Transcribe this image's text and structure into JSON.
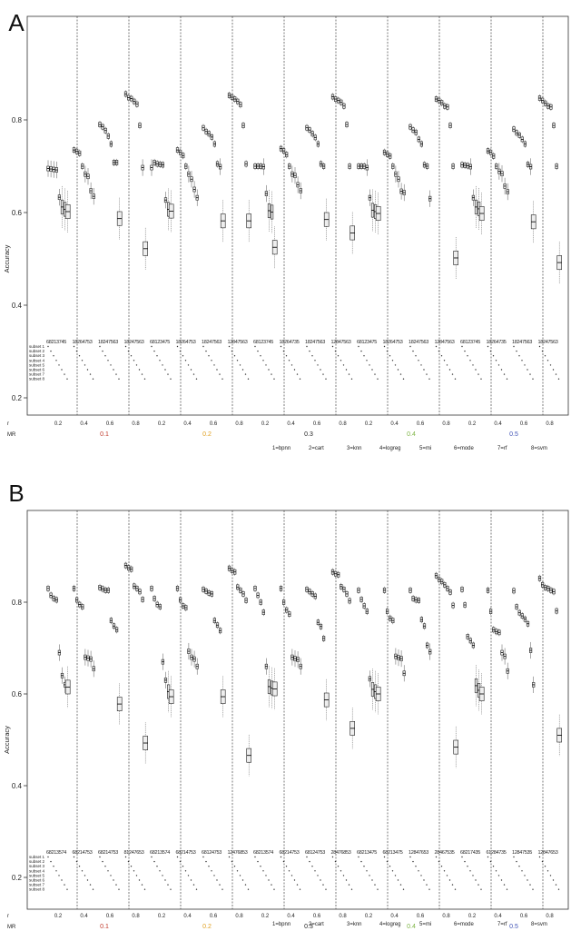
{
  "chart_data": [
    {
      "panel_label": "A",
      "type": "boxplot",
      "ylabel": "Accuracy",
      "ylim": [
        0.18,
        0.92
      ],
      "yticks": [
        0.2,
        0.4,
        0.6,
        0.8
      ],
      "grid": false,
      "legend": "bottom",
      "r_label": "r",
      "mr_label": "MR",
      "r_values": [
        "0.2",
        "0.4",
        "0.6",
        "0.8",
        "0.2",
        "0.4",
        "0.6",
        "0.8",
        "0.2",
        "0.4",
        "0.6",
        "0.8",
        "0.2",
        "0.4",
        "0.6",
        "0.8",
        "0.2",
        "0.4",
        "0.6",
        "0.8"
      ],
      "mr_values": [
        "0.1",
        "0.2",
        "0.3",
        "0.4",
        "0.5"
      ],
      "mr_colors": [
        "#c0392b",
        "#e0a020",
        "#222222",
        "#7cb342",
        "#3f51b5"
      ],
      "subset_labels": [
        "subset 1",
        "subset 2",
        "subset 3",
        "subset 4",
        "subset 5",
        "subset 6",
        "subset 7",
        "subset 8"
      ],
      "method_legend": [
        "1=bpnn",
        "2=cart",
        "3=knn",
        "4=logreg",
        "5=mi",
        "6=mode",
        "7=rf",
        "8=svm"
      ],
      "group_orders": [
        "68213745",
        "18264753",
        "18247563",
        "18247563",
        "68123475",
        "18264753",
        "18247563",
        "12847563",
        "68123745",
        "18264735",
        "18247563",
        "12847563",
        "68123475",
        "18264753",
        "18247563",
        "12847563",
        "68123745",
        "18264735",
        "18247563",
        "18247563"
      ],
      "medians": [
        [
          0.695,
          0.694,
          0.693,
          0.692,
          0.633,
          0.612,
          0.607,
          0.602
        ],
        [
          0.735,
          0.732,
          0.728,
          0.7,
          0.683,
          0.678,
          0.647,
          0.635
        ],
        [
          0.79,
          0.785,
          0.777,
          0.765,
          0.748,
          0.708,
          0.708,
          0.587
        ],
        [
          0.856,
          0.848,
          0.846,
          0.84,
          0.834,
          0.788,
          0.697,
          0.522
        ],
        [
          0.697,
          0.708,
          0.705,
          0.704,
          0.703,
          0.627,
          0.607,
          0.603
        ],
        [
          0.735,
          0.73,
          0.723,
          0.7,
          0.683,
          0.672,
          0.65,
          0.632
        ],
        [
          0.783,
          0.775,
          0.77,
          0.763,
          0.748,
          0.705,
          0.699,
          0.582
        ],
        [
          0.853,
          0.849,
          0.845,
          0.84,
          0.833,
          0.788,
          0.705,
          0.582
        ],
        [
          0.7,
          0.7,
          0.7,
          0.699,
          0.641,
          0.604,
          0.601,
          0.525
        ],
        [
          0.738,
          0.733,
          0.725,
          0.7,
          0.683,
          0.68,
          0.66,
          0.647
        ],
        [
          0.783,
          0.778,
          0.77,
          0.762,
          0.748,
          0.705,
          0.7,
          0.585
        ],
        [
          0.85,
          0.845,
          0.842,
          0.838,
          0.83,
          0.79,
          0.7,
          0.556
        ],
        [
          0.7,
          0.7,
          0.7,
          0.697,
          0.632,
          0.605,
          0.602,
          0.598
        ],
        [
          0.73,
          0.726,
          0.722,
          0.7,
          0.683,
          0.672,
          0.646,
          0.643
        ],
        [
          0.785,
          0.778,
          0.773,
          0.758,
          0.748,
          0.703,
          0.7,
          0.63
        ],
        [
          0.845,
          0.842,
          0.837,
          0.83,
          0.828,
          0.788,
          0.7,
          0.502
        ],
        [
          0.703,
          0.702,
          0.701,
          0.699,
          0.632,
          0.612,
          0.608,
          0.598
        ],
        [
          0.733,
          0.73,
          0.722,
          0.7,
          0.689,
          0.684,
          0.657,
          0.645
        ],
        [
          0.78,
          0.772,
          0.767,
          0.758,
          0.748,
          0.704,
          0.699,
          0.58
        ],
        [
          0.847,
          0.842,
          0.836,
          0.83,
          0.828,
          0.788,
          0.7,
          0.492
        ]
      ]
    },
    {
      "panel_label": "B",
      "type": "boxplot",
      "ylabel": "Accuracy",
      "ylim": [
        0.18,
        0.92
      ],
      "yticks": [
        0.2,
        0.4,
        0.6,
        0.8
      ],
      "grid": false,
      "legend": "bottom",
      "r_label": "r",
      "mr_label": "MR",
      "r_values": [
        "0.2",
        "0.4",
        "0.6",
        "0.8",
        "0.2",
        "0.4",
        "0.6",
        "0.8",
        "0.2",
        "0.4",
        "0.6",
        "0.8",
        "0.2",
        "0.4",
        "0.6",
        "0.8",
        "0.2",
        "0.4",
        "0.6",
        "0.8"
      ],
      "mr_values": [
        "0.1",
        "0.2",
        "0.3",
        "0.4",
        "0.5"
      ],
      "mr_colors": [
        "#c0392b",
        "#e0a020",
        "#222222",
        "#7cb342",
        "#3f51b5"
      ],
      "subset_labels": [
        "subset 1",
        "subset 2",
        "subset 3",
        "subset 4",
        "subset 5",
        "subset 6",
        "subset 7",
        "subset 8"
      ],
      "method_legend": [
        "1=bpnn",
        "2=cart",
        "3=knn",
        "4=logreg",
        "5=mi",
        "6=mode",
        "7=rf",
        "8=svm"
      ],
      "group_orders": [
        "68213574",
        "68214753",
        "68214753",
        "81247653",
        "68213574",
        "68214753",
        "68124753",
        "12476853",
        "68213574",
        "68214753",
        "68124753",
        "28476853",
        "68213475",
        "68213475",
        "12847653",
        "28467535",
        "68217435",
        "61284735",
        "12847535",
        "12847653"
      ],
      "medians": [
        [
          0.83,
          0.815,
          0.808,
          0.805,
          0.69,
          0.64,
          0.62,
          0.615
        ],
        [
          0.83,
          0.805,
          0.795,
          0.79,
          0.68,
          0.678,
          0.676,
          0.655
        ],
        [
          0.832,
          0.829,
          0.826,
          0.826,
          0.76,
          0.748,
          0.74,
          0.578
        ],
        [
          0.88,
          0.875,
          0.872,
          0.835,
          0.83,
          0.823,
          0.806,
          0.493
        ],
        [
          0.83,
          0.808,
          0.795,
          0.79,
          0.67,
          0.63,
          0.605,
          0.594
        ],
        [
          0.83,
          0.805,
          0.792,
          0.788,
          0.693,
          0.68,
          0.676,
          0.66
        ],
        [
          0.828,
          0.824,
          0.82,
          0.818,
          0.76,
          0.75,
          0.738,
          0.594
        ],
        [
          0.874,
          0.869,
          0.866,
          0.833,
          0.826,
          0.818,
          0.804,
          0.466
        ],
        [
          0.83,
          0.815,
          0.8,
          0.778,
          0.66,
          0.616,
          0.613,
          0.611
        ],
        [
          0.83,
          0.8,
          0.783,
          0.774,
          0.68,
          0.677,
          0.675,
          0.66
        ],
        [
          0.828,
          0.823,
          0.818,
          0.813,
          0.756,
          0.747,
          0.721,
          0.587
        ],
        [
          0.866,
          0.862,
          0.86,
          0.834,
          0.828,
          0.818,
          0.803,
          0.525
        ],
        [
          0.826,
          0.806,
          0.792,
          0.78,
          0.633,
          0.61,
          0.605,
          0.6
        ],
        [
          0.826,
          0.78,
          0.765,
          0.76,
          0.682,
          0.679,
          0.677,
          0.645
        ],
        [
          0.826,
          0.808,
          0.805,
          0.804,
          0.762,
          0.748,
          0.706,
          0.692
        ],
        [
          0.858,
          0.85,
          0.845,
          0.838,
          0.83,
          0.822,
          0.793,
          0.484
        ],
        [
          0.828,
          0.794,
          0.725,
          0.716,
          0.706,
          0.618,
          0.608,
          0.6
        ],
        [
          0.826,
          0.78,
          0.74,
          0.736,
          0.734,
          0.69,
          0.682,
          0.65
        ],
        [
          0.825,
          0.79,
          0.777,
          0.77,
          0.763,
          0.753,
          0.695,
          0.62
        ],
        [
          0.852,
          0.838,
          0.832,
          0.83,
          0.826,
          0.823,
          0.781,
          0.51
        ]
      ]
    }
  ]
}
